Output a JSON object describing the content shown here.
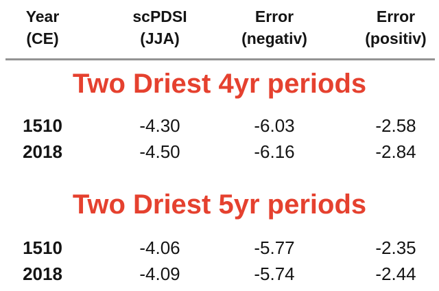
{
  "colors": {
    "accent_red": "#E5412F",
    "rule_gray": "#939393",
    "text": "#141414",
    "background": "#FFFFFF"
  },
  "table": {
    "columns": [
      {
        "line1": "Year",
        "line2": "(CE)"
      },
      {
        "line1": "scPDSI",
        "line2": "(JJA)"
      },
      {
        "line1": "Error",
        "line2": "(negativ)"
      },
      {
        "line1": "Error",
        "line2": "(positiv)"
      }
    ],
    "sections": [
      {
        "title": "Two Driest 4yr periods",
        "rows": [
          {
            "year": "1510",
            "scpdsi": "-4.30",
            "err_neg": "-6.03",
            "err_pos": "-2.58"
          },
          {
            "year": "2018",
            "scpdsi": "-4.50",
            "err_neg": "-6.16",
            "err_pos": "-2.84"
          }
        ]
      },
      {
        "title": "Two Driest 5yr periods",
        "rows": [
          {
            "year": "1510",
            "scpdsi": "-4.06",
            "err_neg": "-5.77",
            "err_pos": "-2.35"
          },
          {
            "year": "2018",
            "scpdsi": "-4.09",
            "err_neg": "-5.74",
            "err_pos": "-2.44"
          }
        ]
      }
    ]
  },
  "chart_data": {
    "type": "table",
    "title": "",
    "columns": [
      "Year (CE)",
      "scPDSI (JJA)",
      "Error (negativ)",
      "Error (positiv)"
    ],
    "sections": [
      {
        "header": "Two Driest 4yr periods",
        "rows": [
          [
            "1510",
            -4.3,
            -6.03,
            -2.58
          ],
          [
            "2018",
            -4.5,
            -6.16,
            -2.84
          ]
        ]
      },
      {
        "header": "Two Driest 5yr periods",
        "rows": [
          [
            "1510",
            -4.06,
            -5.77,
            -2.35
          ],
          [
            "2018",
            -4.09,
            -5.74,
            -2.44
          ]
        ]
      }
    ]
  }
}
